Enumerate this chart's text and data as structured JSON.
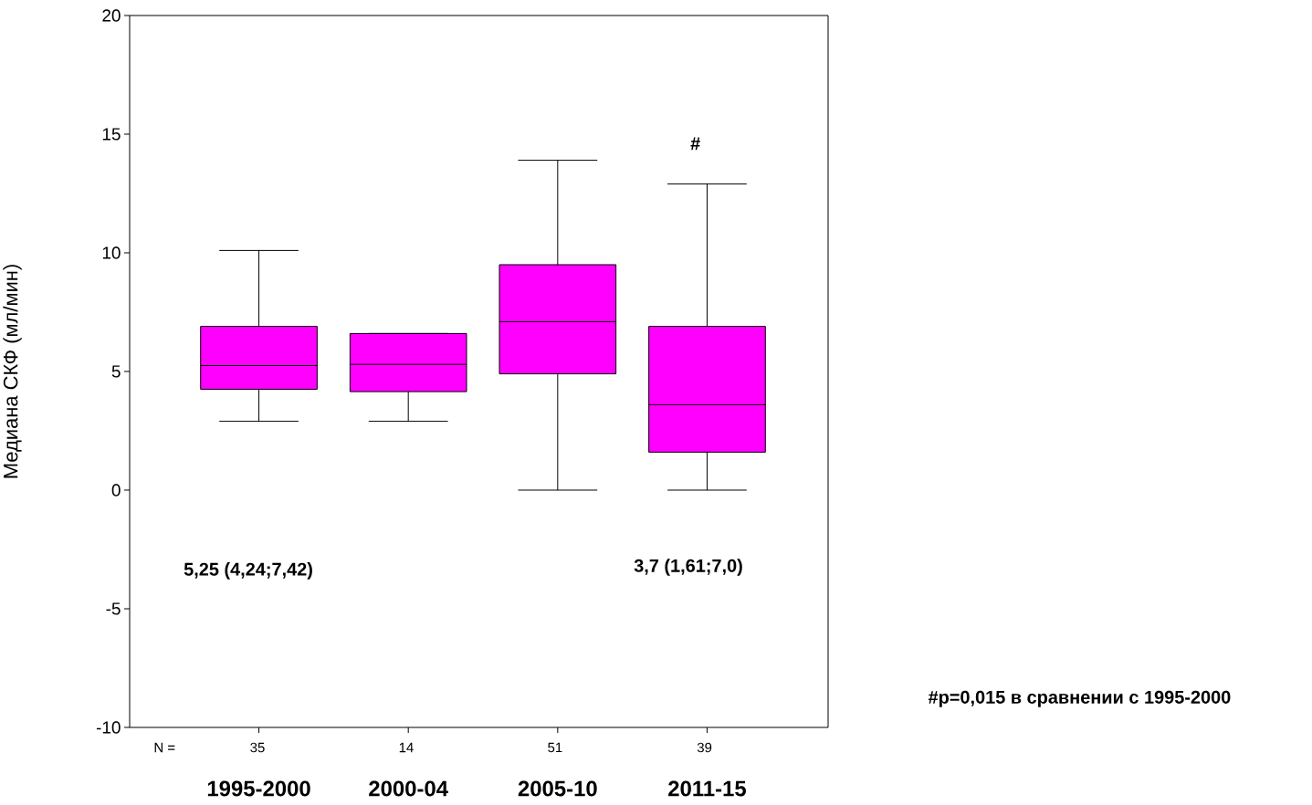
{
  "chart_data": {
    "type": "box",
    "ylabel": "Медиана СКФ (мл/мин)",
    "categories": [
      "1995-2000",
      "2000-04",
      "2005-10",
      "2011-15"
    ],
    "color": "#ff00ff",
    "boxes": [
      {
        "low": 2.9,
        "q1": 4.25,
        "median": 5.25,
        "q3": 6.9,
        "high": 10.1
      },
      {
        "low": 2.9,
        "q1": 4.15,
        "median": 5.3,
        "q3": 6.6,
        "high": 6.6
      },
      {
        "low": 0,
        "q1": 4.9,
        "median": 7.1,
        "q3": 9.5,
        "high": 13.9
      },
      {
        "low": 0,
        "q1": 1.6,
        "median": 3.6,
        "q3": 6.9,
        "high": 12.9
      }
    ],
    "ylim": [
      -10,
      20
    ],
    "yticks": [
      -10,
      -5,
      0,
      5,
      10,
      15,
      20
    ],
    "grid": false,
    "annotations": [
      "N =",
      "35",
      "14",
      "51",
      "39",
      "#",
      "5,25 (4,24;7,42)",
      "3,7 (1,61;7,0)",
      "#p=0,015 в сравнении с 1995-2000"
    ]
  }
}
